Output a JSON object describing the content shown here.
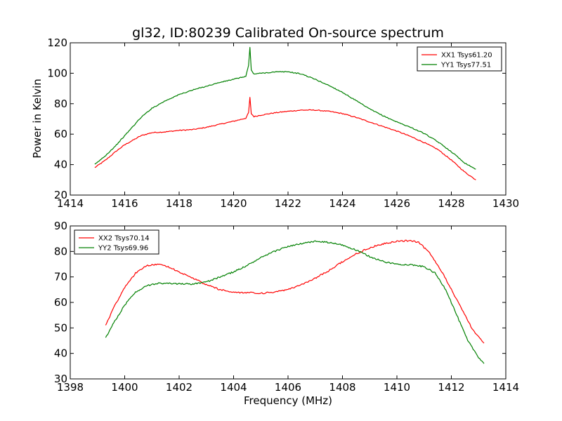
{
  "chart_data": [
    {
      "type": "line",
      "title": "gl32, ID:80239 Calibrated On-source spectrum",
      "xlabel": "",
      "ylabel": "Power in Kelvin",
      "xlim": [
        1414,
        1430
      ],
      "ylim": [
        20,
        120
      ],
      "xticks": [
        1414,
        1416,
        1418,
        1420,
        1422,
        1424,
        1426,
        1428,
        1430
      ],
      "yticks": [
        20,
        40,
        60,
        80,
        100,
        120
      ],
      "legend_position": "top-right",
      "series": [
        {
          "name": "XX1 Tsys61.20",
          "color": "#ff0000",
          "x": [
            1414.9,
            1415.3,
            1415.7,
            1416.0,
            1416.3,
            1416.6,
            1417.0,
            1417.5,
            1418.0,
            1418.5,
            1419.0,
            1419.5,
            1420.0,
            1420.45,
            1420.55,
            1420.6,
            1420.65,
            1420.75,
            1421.0,
            1421.5,
            1422.0,
            1422.5,
            1423.0,
            1423.5,
            1424.0,
            1424.5,
            1425.0,
            1425.5,
            1426.0,
            1426.5,
            1427.0,
            1427.5,
            1428.0,
            1428.5,
            1428.9
          ],
          "y": [
            38,
            43,
            49,
            53,
            56,
            59,
            61,
            61.5,
            62.5,
            63,
            64.5,
            66.5,
            68.5,
            70.5,
            74,
            84,
            73.5,
            71.5,
            72.5,
            74,
            75,
            75.8,
            75.8,
            75,
            73.5,
            71,
            68,
            65,
            62,
            58.5,
            54.5,
            50,
            43,
            35,
            30
          ]
        },
        {
          "name": "YY1 Tsys77.51",
          "color": "#008000",
          "x": [
            1414.9,
            1415.3,
            1415.7,
            1416.0,
            1416.3,
            1416.6,
            1417.0,
            1417.5,
            1418.0,
            1418.5,
            1419.0,
            1419.5,
            1420.0,
            1420.45,
            1420.55,
            1420.6,
            1420.65,
            1420.75,
            1421.0,
            1421.5,
            1422.0,
            1422.5,
            1423.0,
            1423.5,
            1424.0,
            1424.5,
            1425.0,
            1425.5,
            1426.0,
            1426.5,
            1427.0,
            1427.5,
            1428.0,
            1428.5,
            1428.9
          ],
          "y": [
            40,
            46,
            53,
            59,
            65,
            71,
            77,
            82,
            86,
            89,
            91.5,
            94,
            96,
            98,
            105,
            117,
            102,
            99.5,
            100,
            100.8,
            101,
            99.5,
            96,
            92,
            87.5,
            82,
            76.5,
            72,
            68,
            64.5,
            60.5,
            55,
            48.5,
            41,
            37
          ]
        }
      ]
    },
    {
      "type": "line",
      "title": "",
      "xlabel": "Frequency (MHz)",
      "ylabel": "",
      "xlim": [
        1398,
        1414
      ],
      "ylim": [
        30,
        90
      ],
      "xticks": [
        1398,
        1400,
        1402,
        1404,
        1406,
        1408,
        1410,
        1412,
        1414
      ],
      "yticks": [
        30,
        40,
        50,
        60,
        70,
        80,
        90
      ],
      "legend_position": "top-left",
      "series": [
        {
          "name": "XX2 Tsys70.14",
          "color": "#ff0000",
          "x": [
            1399.3,
            1399.6,
            1400.0,
            1400.4,
            1400.8,
            1401.2,
            1401.6,
            1402.0,
            1402.5,
            1403.0,
            1403.5,
            1404.0,
            1404.5,
            1405.0,
            1405.5,
            1406.0,
            1406.5,
            1407.0,
            1407.5,
            1408.0,
            1408.5,
            1409.0,
            1409.5,
            1410.0,
            1410.5,
            1410.8,
            1411.2,
            1411.6,
            1412.0,
            1412.4,
            1412.8,
            1413.2
          ],
          "y": [
            51,
            58,
            66,
            71.5,
            74.5,
            75,
            74,
            72,
            69.5,
            67,
            65,
            64,
            63.8,
            63.6,
            64,
            65,
            67,
            69.5,
            72.5,
            76,
            79,
            81.5,
            83,
            84,
            84.3,
            83.5,
            79.5,
            73,
            65,
            57,
            49,
            44
          ]
        },
        {
          "name": "YY2 Tsys69.96",
          "color": "#008000",
          "x": [
            1399.3,
            1399.6,
            1400.0,
            1400.4,
            1400.8,
            1401.2,
            1401.6,
            1402.0,
            1402.5,
            1403.0,
            1403.5,
            1404.0,
            1404.5,
            1405.0,
            1405.5,
            1406.0,
            1406.5,
            1407.0,
            1407.5,
            1408.0,
            1408.5,
            1409.0,
            1409.5,
            1410.0,
            1410.5,
            1411.0,
            1411.4,
            1411.8,
            1412.2,
            1412.6,
            1413.0,
            1413.2
          ],
          "y": [
            46,
            52,
            59,
            64,
            66.5,
            67.5,
            67.5,
            67.3,
            67.2,
            68,
            70,
            72,
            74.5,
            77.5,
            80,
            82,
            83,
            84,
            83.5,
            82.5,
            80.5,
            78,
            76,
            75,
            74.8,
            74,
            71.5,
            65,
            55,
            45,
            38.5,
            36
          ]
        }
      ]
    }
  ]
}
